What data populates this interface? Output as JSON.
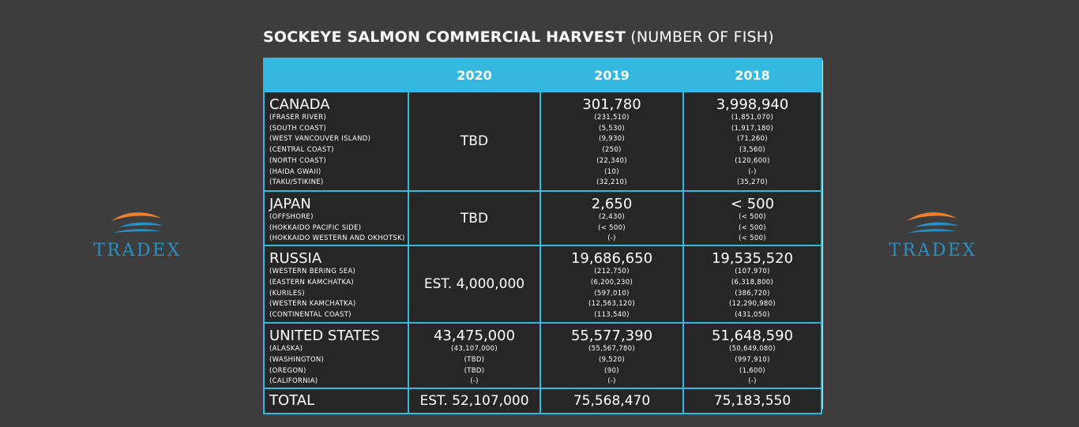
{
  "title": {
    "bold": "SOCKEYE SALMON COMMERCIAL HARVEST",
    "light": "(NUMBER OF FISH)"
  },
  "brand": {
    "name": "TRADEX",
    "colors": {
      "orange": "#f07e2b",
      "blue": "#2a8fc4",
      "header": "#35b8e0"
    }
  },
  "chart_data": {
    "type": "table",
    "title": "SOCKEYE SALMON COMMERCIAL HARVEST (NUMBER OF FISH)",
    "columns": [
      "2020",
      "2019",
      "2018"
    ],
    "rows": [
      {
        "name": "CANADA",
        "subs": [
          "(FRASER RIVER)",
          "(SOUTH COAST)",
          "(WEST VANCOUVER ISLAND)",
          "(CENTRAL COAST)",
          "(NORTH COAST)",
          "(HAIDA GWAII)",
          "(TAKU/STIKINE)"
        ],
        "y2020": {
          "total": "TBD",
          "subs": []
        },
        "y2019": {
          "total": "301,780",
          "subs": [
            "(231,510)",
            "(5,530)",
            "(9,930)",
            "(250)",
            "(22,340)",
            "(10)",
            "(32,210)"
          ]
        },
        "y2018": {
          "total": "3,998,940",
          "subs": [
            "(1,851,070)",
            "(1,917,180)",
            "(71,260)",
            "(3,560)",
            "(120,600)",
            "(-)",
            "(35,270)"
          ]
        }
      },
      {
        "name": "JAPAN",
        "subs": [
          "(OFFSHORE)",
          "(HOKKAIDO PACIFIC SIDE)",
          "(HOKKAIDO WESTERN AND OKHOTSK)"
        ],
        "y2020": {
          "total": "TBD",
          "subs": []
        },
        "y2019": {
          "total": "2,650",
          "subs": [
            "(2,430)",
            "(< 500)",
            "(-)"
          ]
        },
        "y2018": {
          "total": "< 500",
          "subs": [
            "(< 500)",
            "(< 500)",
            "(< 500)"
          ]
        }
      },
      {
        "name": "RUSSIA",
        "subs": [
          "(WESTERN BERING SEA)",
          "(EASTERN KAMCHATKA)",
          "(KURILES)",
          "(WESTERN KAMCHATKA)",
          "(CONTINENTAL COAST)"
        ],
        "y2020": {
          "total": "EST. 4,000,000",
          "subs": []
        },
        "y2019": {
          "total": "19,686,650",
          "subs": [
            "(212,750)",
            "(6,200,230)",
            "(597,010)",
            "(12,563,120)",
            "(113,540)"
          ]
        },
        "y2018": {
          "total": "19,535,520",
          "subs": [
            "(107,970)",
            "(6,318,800)",
            "(386,720)",
            "(12,290,980)",
            "(431,050)"
          ]
        }
      },
      {
        "name": "UNITED STATES",
        "subs": [
          "(ALASKA)",
          "(WASHINGTON)",
          "(OREGON)",
          "(CALIFORNIA)"
        ],
        "y2020": {
          "total": "43,475,000",
          "subs": [
            "(43,107,000)",
            "(TBD)",
            "(TBD)",
            "(-)"
          ]
        },
        "y2019": {
          "total": "55,577,390",
          "subs": [
            "(55,567,780)",
            "(9,520)",
            "(90)",
            "(-)"
          ]
        },
        "y2018": {
          "total": "51,648,590",
          "subs": [
            "(50,649,080)",
            "(997,910)",
            "(1,600)",
            "(-)"
          ]
        }
      }
    ],
    "total": {
      "name": "TOTAL",
      "y2020": "EST. 52,107,000",
      "y2019": "75,568,470",
      "y2018": "75,183,550"
    }
  }
}
